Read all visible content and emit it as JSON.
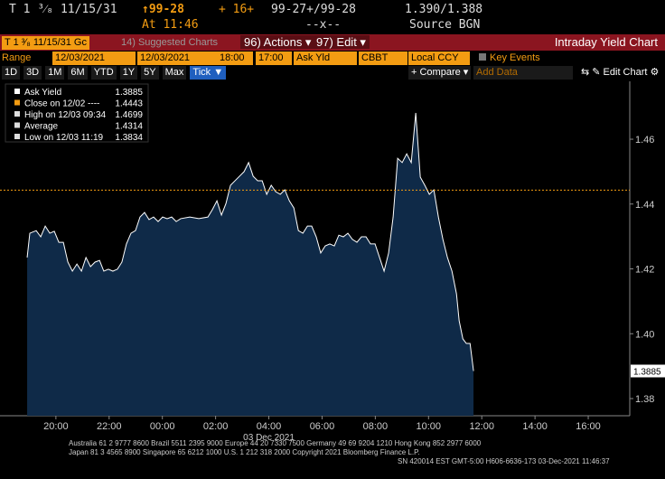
{
  "header": {
    "security": "T 1 ³⁄₈ 11/15/31",
    "price": "↑99-28",
    "change": "+ 16+",
    "bid_ask": "99-27+/99-28",
    "yields": "1.390/1.388",
    "time": "At 11:46",
    "volume": "--x--",
    "source": "Source BGN"
  },
  "toolbar": {
    "ticker": "T 1 ³⁄₈ 11/15/31 Gc",
    "suggested": "14) Suggested Charts",
    "actions": "96) Actions ▾",
    "edit": "97) Edit ▾",
    "title": "Intraday Yield Chart"
  },
  "controls": {
    "range_label": "Range",
    "start_date": "12/03/2021",
    "end_date": "12/03/2021",
    "start_time": "18:00",
    "end_time": "17:00",
    "field": "Ask Yld",
    "source": "CBBT",
    "currency": "Local CCY",
    "key_events": "Key Events",
    "periods": [
      "1D",
      "3D",
      "1M",
      "6M",
      "YTD",
      "1Y",
      "5Y",
      "Max",
      "Tick ▼"
    ],
    "compare": "+ Compare ▾",
    "add_data": "Add Data",
    "edit_chart": "⇆ ✎ Edit Chart ⚙"
  },
  "chart_data": {
    "type": "area",
    "color": "#0f2a48",
    "line_color": "#ffffff",
    "date_label": "03 Dec 2021",
    "legend": [
      {
        "label": "Ask Yield",
        "value": 1.3885
      },
      {
        "label": "Close on 12/02 ----",
        "value": 1.4443
      },
      {
        "label": "High on 12/03 09:34",
        "value": 1.4699
      },
      {
        "label": "Average",
        "value": 1.4314
      },
      {
        "label": "Low on 12/03 11:19",
        "value": 1.3834
      }
    ],
    "xlim": [
      17.9,
      41.56
    ],
    "ylim": [
      1.3747,
      1.4759
    ],
    "xticks": [
      {
        "value": 20,
        "label": "20:00"
      },
      {
        "value": 22,
        "label": "22:00"
      },
      {
        "value": 24,
        "label": "00:00"
      },
      {
        "value": 26,
        "label": "02:00"
      },
      {
        "value": 28,
        "label": "04:00"
      },
      {
        "value": 30,
        "label": "06:00"
      },
      {
        "value": 32,
        "label": "08:00"
      },
      {
        "value": 34,
        "label": "10:00"
      },
      {
        "value": 36,
        "label": "12:00"
      },
      {
        "value": 38,
        "label": "14:00"
      },
      {
        "value": 40,
        "label": "16:00"
      }
    ],
    "yticks": [
      1.38,
      {
        "value": 1.4,
        "label": "1.40"
      },
      1.42,
      1.44,
      1.46
    ],
    "x": [
      18.92,
      19.02,
      19.26,
      19.43,
      19.6,
      19.77,
      19.94,
      20.11,
      20.28,
      20.45,
      20.62,
      20.79,
      20.96,
      21.13,
      21.3,
      21.47,
      21.64,
      21.8,
      21.97,
      22.14,
      22.31,
      22.48,
      22.65,
      22.82,
      22.99,
      23.16,
      23.33,
      23.5,
      23.67,
      23.84,
      24.01,
      24.18,
      24.35,
      24.52,
      24.69,
      25.03,
      25.37,
      25.71,
      25.88,
      26.05,
      26.22,
      26.39,
      26.56,
      26.73,
      26.9,
      27.07,
      27.24,
      27.41,
      27.58,
      27.75,
      27.92,
      28.09,
      28.26,
      28.43,
      28.6,
      28.77,
      28.94,
      29.11,
      29.28,
      29.45,
      29.61,
      29.78,
      29.95,
      30.12,
      30.29,
      30.46,
      30.63,
      30.8,
      30.97,
      31.14,
      31.31,
      31.48,
      31.65,
      31.82,
      31.99,
      32.16,
      32.33,
      32.5,
      32.67,
      32.84,
      33.01,
      33.18,
      33.35,
      33.52,
      33.69,
      33.86,
      34.03,
      34.2,
      34.37,
      34.54,
      34.71,
      34.88,
      35.05,
      35.15,
      35.29,
      35.42,
      35.56,
      35.69
    ],
    "values": [
      1.4235,
      1.431,
      1.4318,
      1.4299,
      1.4332,
      1.431,
      1.4316,
      1.4282,
      1.4282,
      1.4221,
      1.4193,
      1.4215,
      1.4193,
      1.4235,
      1.4207,
      1.4221,
      1.4226,
      1.4193,
      1.4199,
      1.4193,
      1.4199,
      1.4221,
      1.4277,
      1.431,
      1.4318,
      1.436,
      1.4374,
      1.4352,
      1.436,
      1.4346,
      1.436,
      1.4355,
      1.436,
      1.4346,
      1.4355,
      1.436,
      1.4355,
      1.436,
      1.4383,
      1.441,
      1.4366,
      1.4402,
      1.4458,
      1.4472,
      1.4486,
      1.45,
      1.4528,
      1.4486,
      1.4472,
      1.4472,
      1.443,
      1.4458,
      1.4438,
      1.443,
      1.4444,
      1.441,
      1.4388,
      1.4318,
      1.431,
      1.4332,
      1.4332,
      1.4299,
      1.4249,
      1.4271,
      1.4277,
      1.4271,
      1.4304,
      1.4299,
      1.431,
      1.4291,
      1.4282,
      1.4299,
      1.4299,
      1.4277,
      1.4277,
      1.4235,
      1.4193,
      1.4249,
      1.436,
      1.4541,
      1.4528,
      1.4555,
      1.4528,
      1.4681,
      1.4483,
      1.4458,
      1.443,
      1.4444,
      1.436,
      1.4291,
      1.4235,
      1.4193,
      1.4123,
      1.404,
      1.3984,
      1.397,
      1.397,
      1.3885
    ]
  },
  "footer": [
    "Australia 61 2 9777 8600 Brazil 5511 2395 9000 Europe 44 20 7330 7500 Germany 49 69 9204 1210 Hong Kong 852 2977 6000",
    "Japan 81 3 4565 8900       Singapore 65 6212 1000       U.S. 1 212 318 2000           Copyright 2021 Bloomberg Finance L.P.",
    "SN 420014 EST  GMT-5:00 H606-6636-173 03-Dec-2021 11:46:37"
  ]
}
